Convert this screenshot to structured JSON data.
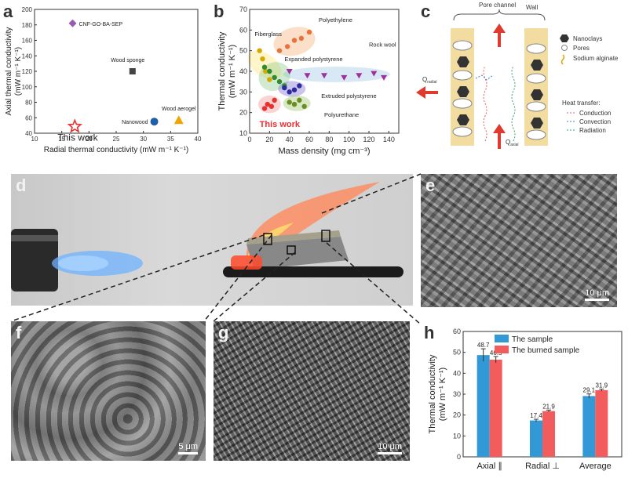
{
  "panels": {
    "a": {
      "letter": "a",
      "chart_data": {
        "type": "scatter",
        "xlabel": "Radial thermal conductivity (mW m⁻¹ K⁻¹)",
        "ylabel_line1": "Axial thermal conductivity",
        "ylabel_line2": "(mW m⁻¹ K⁻¹)",
        "xlim": [
          10,
          40
        ],
        "ylim": [
          40,
          200
        ],
        "xticks": [
          10,
          15,
          20,
          25,
          30,
          35,
          40
        ],
        "yticks": [
          40,
          60,
          80,
          100,
          120,
          140,
          160,
          180,
          200
        ],
        "points": [
          {
            "name": "CNF-GO-BA-SEP",
            "x": 17,
            "y": 182,
            "marker": "diamond",
            "color": "#9b59b6"
          },
          {
            "name": "Wood sponge",
            "x": 28,
            "y": 120,
            "marker": "square",
            "color": "#444444"
          },
          {
            "name": "Nanowood",
            "x": 32,
            "y": 55,
            "marker": "circle",
            "color": "#1f5fa8"
          },
          {
            "name": "Wood aerogel",
            "x": 36.5,
            "y": 57,
            "marker": "triangle",
            "color": "#f0a500"
          },
          {
            "name": "This work",
            "x": 17.4,
            "y": 48.7,
            "marker": "star",
            "color": "#e8312f"
          }
        ]
      }
    },
    "b": {
      "letter": "b",
      "chart_data": {
        "type": "scatter",
        "xlabel": "Mass density (mg cm⁻³)",
        "ylabel_line1": "Thermal conductivity",
        "ylabel_line2": "(mW m⁻¹ K⁻¹)",
        "xlim": [
          0,
          150
        ],
        "ylim": [
          10,
          70
        ],
        "xticks": [
          0,
          20,
          40,
          60,
          80,
          100,
          120,
          140
        ],
        "yticks": [
          10,
          20,
          30,
          40,
          50,
          60,
          70
        ],
        "regions": [
          {
            "name": "Polyethylene",
            "color": "#f4a460",
            "points": [
              [
                30,
                50
              ],
              [
                38,
                52
              ],
              [
                45,
                55
              ],
              [
                52,
                56
              ],
              [
                60,
                59
              ]
            ]
          },
          {
            "name": "Rock wool",
            "color": "#8fbcdf",
            "points": [
              [
                40,
                40
              ],
              [
                58,
                38
              ],
              [
                75,
                38
              ],
              [
                95,
                37
              ],
              [
                110,
                38
              ],
              [
                125,
                39
              ],
              [
                135,
                37
              ]
            ]
          },
          {
            "name": "Fiberglass",
            "color": "#ffe36b",
            "points": [
              [
                10,
                50
              ],
              [
                13,
                46
              ],
              [
                16,
                40
              ],
              [
                20,
                36
              ]
            ]
          },
          {
            "name": "Expanded polystyrene",
            "color": "#7cc47c",
            "points": [
              [
                15,
                42
              ],
              [
                20,
                40
              ],
              [
                25,
                37
              ],
              [
                30,
                35
              ],
              [
                35,
                33
              ]
            ]
          },
          {
            "name": "Extruded polystyrene",
            "color": "#6a5acd",
            "points": [
              [
                35,
                32
              ],
              [
                40,
                30
              ],
              [
                45,
                31
              ],
              [
                50,
                33
              ]
            ]
          },
          {
            "name": "Polyurethane",
            "color": "#8fbc5a",
            "points": [
              [
                40,
                25
              ],
              [
                45,
                24
              ],
              [
                50,
                26
              ],
              [
                55,
                23
              ]
            ]
          },
          {
            "name": "This work",
            "color": "#f08080",
            "points": [
              [
                15,
                22
              ],
              [
                18,
                24
              ],
              [
                22,
                23
              ],
              [
                25,
                26
              ]
            ]
          }
        ],
        "this_work_label": "This work"
      }
    },
    "c": {
      "letter": "c",
      "pore_channel_label": "Pore channel",
      "wall_label": "Wall",
      "q_radial_label": "Q",
      "q_radial_sub": "radial",
      "q_axial_label": "Q",
      "q_axial_sub": "axial",
      "legend": [
        "Nanoclays",
        "Pores",
        "Sodium alginate"
      ],
      "heat_transfer_title": "Heat transfer:",
      "heat_transfer": [
        "Conduction",
        "Convection",
        "Radiation"
      ]
    },
    "d": {
      "letter": "d"
    },
    "e": {
      "letter": "e",
      "scale_bar": "10 μm"
    },
    "f": {
      "letter": "f",
      "scale_bar": "5 μm"
    },
    "g": {
      "letter": "g",
      "scale_bar": "10 μm"
    },
    "h": {
      "letter": "h",
      "chart_data": {
        "type": "bar",
        "categories": [
          "Axial ∥",
          "Radial ⊥",
          "Average"
        ],
        "ylabel_line1": "Thermal conductivity",
        "ylabel_line2": "(mW m⁻¹ K⁻¹)",
        "ylim": [
          0,
          60
        ],
        "yticks": [
          0,
          10,
          20,
          30,
          40,
          50,
          60
        ],
        "series": [
          {
            "name": "The sample",
            "color": "#3399d6",
            "values": [
              48.7,
              17.4,
              29.1
            ],
            "errors": [
              3.0,
              0.6,
              1.0
            ],
            "labels": [
              "48.7",
              "17.4",
              "29.1"
            ]
          },
          {
            "name": "The burned sample",
            "color": "#f25c5c",
            "values": [
              46.5,
              21.9,
              31.9
            ],
            "errors": [
              1.5,
              0.5,
              0.5
            ],
            "labels": [
              "46.5",
              "21.9",
              "31.9"
            ]
          }
        ]
      }
    }
  },
  "colors": {
    "accent_red": "#e8312f",
    "bar_blue": "#3399d6",
    "bar_red": "#f25c5c"
  }
}
